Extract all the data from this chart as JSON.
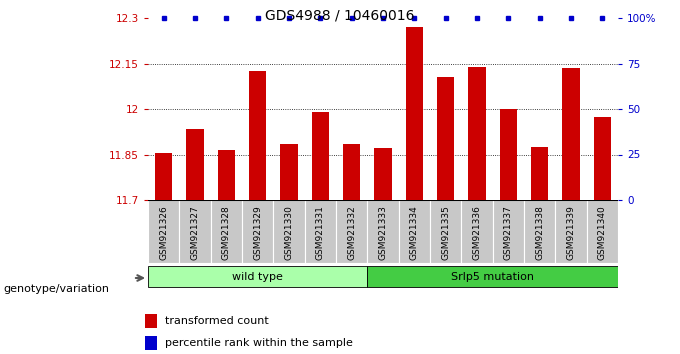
{
  "title": "GDS4988 / 10460016",
  "samples": [
    "GSM921326",
    "GSM921327",
    "GSM921328",
    "GSM921329",
    "GSM921330",
    "GSM921331",
    "GSM921332",
    "GSM921333",
    "GSM921334",
    "GSM921335",
    "GSM921336",
    "GSM921337",
    "GSM921338",
    "GSM921339",
    "GSM921340"
  ],
  "values": [
    11.855,
    11.935,
    11.865,
    12.125,
    11.885,
    11.99,
    11.885,
    11.87,
    12.27,
    12.105,
    12.14,
    12.0,
    11.875,
    12.135,
    11.975
  ],
  "bar_color": "#cc0000",
  "dot_color": "#0000cc",
  "ylim_left": [
    11.7,
    12.3
  ],
  "ylim_right": [
    0,
    100
  ],
  "yticks_left": [
    11.7,
    11.85,
    12.0,
    12.15,
    12.3
  ],
  "yticks_right": [
    0,
    25,
    50,
    75,
    100
  ],
  "ytick_labels_left": [
    "11.7",
    "11.85",
    "12",
    "12.15",
    "12.3"
  ],
  "ytick_labels_right": [
    "0",
    "25",
    "50",
    "75",
    "100%"
  ],
  "grid_values": [
    11.85,
    12.0,
    12.15
  ],
  "groups": [
    {
      "label": "wild type",
      "start": 0,
      "end": 6,
      "color": "#aaffaa"
    },
    {
      "label": "Srlp5 mutation",
      "start": 7,
      "end": 14,
      "color": "#44cc44"
    }
  ],
  "legend_items": [
    {
      "color": "#cc0000",
      "label": "transformed count"
    },
    {
      "color": "#0000cc",
      "label": "percentile rank within the sample"
    }
  ],
  "bg_color": "#c8c8c8",
  "genotype_label": "genotype/variation"
}
